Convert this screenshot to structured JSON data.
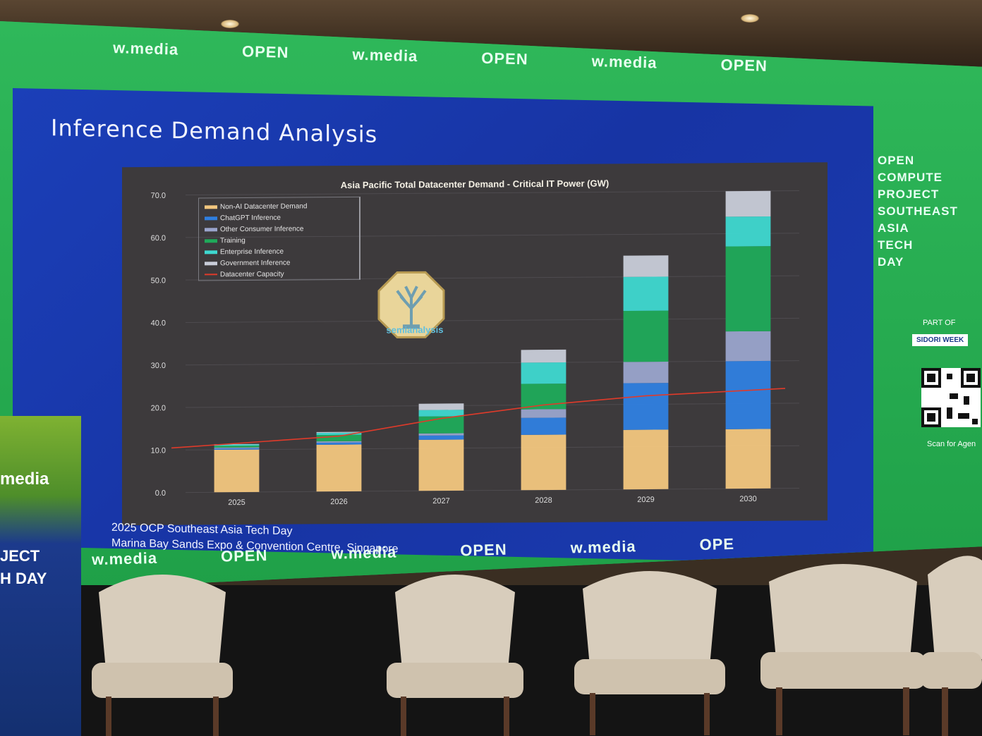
{
  "banner": {
    "top": [
      "w.media",
      "OPEN",
      "w.media",
      "OPEN",
      "w.media",
      "OPEN"
    ],
    "bottom": [
      "w.media",
      "OPEN",
      "w.media",
      "OPEN",
      "w.media",
      "OPE"
    ]
  },
  "slide": {
    "title": "Inference Demand Analysis",
    "footer_line1": "2025 OCP Southeast Asia Tech Day",
    "footer_line2": "Marina Bay Sands Expo & Convention Centre, Singapore",
    "logo_text": "semianalysis"
  },
  "sidebar": {
    "lines": [
      "OPEN",
      "COMPUTE",
      "PROJECT",
      "SOUTHEAST",
      "ASIA",
      "TECH",
      "DAY"
    ],
    "part_of": "PART OF",
    "week": "SIDORI WEEK",
    "scan": "Scan for Agen"
  },
  "podium": {
    "word1": "media",
    "word2": "JECT",
    "word3": "H DAY"
  },
  "colors": {
    "non_ai": "#f2c67e",
    "chatgpt": "#2f7fe0",
    "other_consumer": "#9aa4cc",
    "training": "#1faa5a",
    "enterprise": "#3ed8d0",
    "government": "#c8ccd8",
    "capacity": "#e03a2a",
    "slide_bg": "#1b3fb8",
    "panel_bg": "#3d3a3c"
  },
  "chart_data": {
    "type": "bar",
    "title": "Asia Pacific Total Datacenter Demand - Critical IT Power (GW)",
    "categories": [
      "2025",
      "2026",
      "2027",
      "2028",
      "2029",
      "2030"
    ],
    "ylim": [
      0,
      70
    ],
    "yticks": [
      "0.0",
      "10.0",
      "20.0",
      "30.0",
      "40.0",
      "50.0",
      "60.0",
      "70.0"
    ],
    "stacked": true,
    "series": [
      {
        "name": "Non-AI Datacenter Demand",
        "values": [
          10.0,
          11.0,
          12.0,
          13.0,
          14.0,
          14.0
        ]
      },
      {
        "name": "ChatGPT Inference",
        "values": [
          0.3,
          0.5,
          1.0,
          4.0,
          11.0,
          16.0
        ]
      },
      {
        "name": "Other Consumer Inference",
        "values": [
          0.2,
          0.3,
          0.5,
          2.0,
          5.0,
          7.0
        ]
      },
      {
        "name": "Training",
        "values": [
          0.4,
          1.5,
          4.0,
          6.0,
          12.0,
          20.0
        ]
      },
      {
        "name": "Enterprise Inference",
        "values": [
          0.3,
          0.5,
          1.5,
          5.0,
          8.0,
          7.0
        ]
      },
      {
        "name": "Government Inference",
        "values": [
          0.1,
          0.2,
          1.5,
          3.0,
          5.0,
          6.0
        ]
      }
    ],
    "line": {
      "name": "Datacenter Capacity",
      "values": [
        10.5,
        13.0,
        17.0,
        20.0,
        22.0,
        23.5
      ]
    },
    "legend": "top-left"
  }
}
